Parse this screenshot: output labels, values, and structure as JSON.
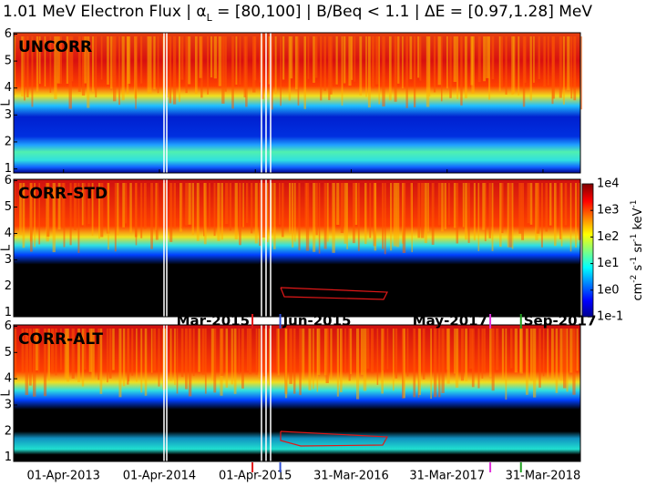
{
  "chart_data": {
    "type": "spectrogram",
    "title_parts": [
      "1.01 MeV Electron Flux | α",
      "L",
      " = [80,100] | B/Beq < 1.1 | ΔE = [0.97,1.28] MeV"
    ],
    "panels": [
      {
        "label": "UNCORR"
      },
      {
        "label": "CORR-STD"
      },
      {
        "label": "CORR-ALT"
      }
    ],
    "ylabel": "L",
    "ylim": [
      0.85,
      6.05
    ],
    "yticks": [
      1,
      2,
      3,
      4,
      5,
      6
    ],
    "xlim": [
      2012.73,
      2018.64
    ],
    "xticks": [
      {
        "value": 2013.25,
        "label": "01-Apr-2013"
      },
      {
        "value": 2014.25,
        "label": "01-Apr-2014"
      },
      {
        "value": 2015.25,
        "label": "01-Apr-2015"
      },
      {
        "value": 2016.25,
        "label": "31-Mar-2016"
      },
      {
        "value": 2017.25,
        "label": "31-Mar-2017"
      },
      {
        "value": 2018.25,
        "label": "31-Mar-2018"
      }
    ],
    "events": [
      {
        "label": "Mar-2015",
        "x": 2015.22,
        "color": "#e01818",
        "side": "left"
      },
      {
        "label": "Jun-2015",
        "x": 2015.51,
        "color": "#3050d8",
        "side": "right"
      },
      {
        "label": "May-2017",
        "x": 2017.7,
        "color": "#e030d8",
        "side": "left"
      },
      {
        "label": "Sep-2017",
        "x": 2018.02,
        "color": "#20a020",
        "side": "right"
      }
    ],
    "colorbar": {
      "scale": "log",
      "clim": [
        0.1,
        10000
      ],
      "ticks": [
        {
          "value": 10000,
          "label": "1e4"
        },
        {
          "value": 1000,
          "label": "1e3"
        },
        {
          "value": 100,
          "label": "1e2"
        },
        {
          "value": 10,
          "label": "1e1"
        },
        {
          "value": 1,
          "label": "1e0"
        },
        {
          "value": 0.1,
          "label": "1e-1"
        }
      ],
      "label_parts": [
        "cm",
        "-2",
        " s",
        "-1",
        " sr",
        "-1",
        " keV",
        "-1"
      ]
    }
  }
}
